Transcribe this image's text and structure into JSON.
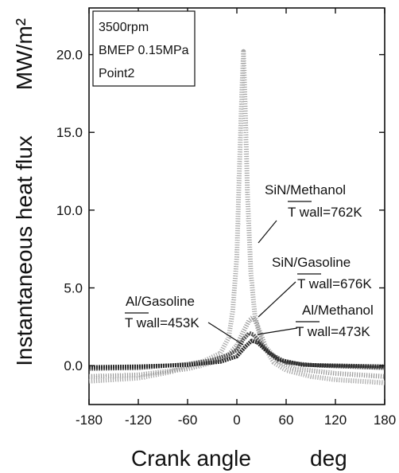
{
  "chart_data": {
    "type": "line",
    "xlabel": "Crank angle",
    "xunit": "deg",
    "ylabel": "Instantaneous heat flux",
    "yunit": "MW/m²",
    "xlim": [
      -180,
      180
    ],
    "ylim": [
      -2.5,
      23
    ],
    "xticks": [
      "-180",
      "-120",
      "-60",
      "0",
      "60",
      "120",
      "180"
    ],
    "yticks": [
      "0.0",
      "5.0",
      "10.0",
      "15.0",
      "20.0"
    ],
    "info_box": [
      "3500rpm",
      "BMEP 0.15MPa",
      "Point2"
    ],
    "grid": false,
    "series": [
      {
        "label": "SiN/Methanol",
        "twall": "T wall=762K",
        "color": "#a8a8a8",
        "style": "dotted",
        "points": [
          [
            -180,
            -1.0
          ],
          [
            -120,
            -0.8
          ],
          [
            -80,
            -0.4
          ],
          [
            -60,
            0.0
          ],
          [
            -40,
            0.3
          ],
          [
            -20,
            0.8
          ],
          [
            -10,
            1.8
          ],
          [
            -5,
            3.5
          ],
          [
            0,
            7.0
          ],
          [
            3,
            12.5
          ],
          [
            6,
            17.5
          ],
          [
            8,
            20.2
          ],
          [
            10,
            17.0
          ],
          [
            13,
            11.0
          ],
          [
            17,
            6.0
          ],
          [
            22,
            3.2
          ],
          [
            30,
            1.5
          ],
          [
            45,
            0.2
          ],
          [
            60,
            -0.3
          ],
          [
            90,
            -0.7
          ],
          [
            120,
            -0.9
          ],
          [
            180,
            -1.1
          ]
        ]
      },
      {
        "label": "SiN/Gasoline",
        "twall": "T wall=676K",
        "color": "#9a9a9a",
        "style": "dotted",
        "points": [
          [
            -180,
            -0.7
          ],
          [
            -120,
            -0.6
          ],
          [
            -60,
            -0.2
          ],
          [
            -30,
            0.2
          ],
          [
            -10,
            0.7
          ],
          [
            0,
            1.3
          ],
          [
            8,
            2.2
          ],
          [
            15,
            2.9
          ],
          [
            20,
            3.1
          ],
          [
            25,
            2.6
          ],
          [
            35,
            1.2
          ],
          [
            50,
            0.3
          ],
          [
            70,
            -0.2
          ],
          [
            120,
            -0.5
          ],
          [
            180,
            -0.7
          ]
        ]
      },
      {
        "label": "Al/Gasoline",
        "twall": "T wall=453K",
        "color": "#555555",
        "style": "solid",
        "points": [
          [
            -180,
            -0.2
          ],
          [
            -120,
            -0.15
          ],
          [
            -60,
            0.1
          ],
          [
            -30,
            0.35
          ],
          [
            -10,
            0.7
          ],
          [
            0,
            1.0
          ],
          [
            8,
            1.7
          ],
          [
            15,
            2.1
          ],
          [
            20,
            2.0
          ],
          [
            28,
            1.5
          ],
          [
            40,
            0.8
          ],
          [
            60,
            0.2
          ],
          [
            100,
            0.0
          ],
          [
            180,
            -0.15
          ]
        ]
      },
      {
        "label": "Al/Methanol",
        "twall": "T wall=473K",
        "color": "#2a2a2a",
        "style": "solid",
        "points": [
          [
            -180,
            -0.1
          ],
          [
            -120,
            -0.05
          ],
          [
            -60,
            0.05
          ],
          [
            -20,
            0.25
          ],
          [
            0,
            0.6
          ],
          [
            10,
            1.2
          ],
          [
            18,
            1.6
          ],
          [
            25,
            1.5
          ],
          [
            35,
            1.0
          ],
          [
            50,
            0.4
          ],
          [
            80,
            0.05
          ],
          [
            180,
            -0.05
          ]
        ]
      }
    ]
  }
}
